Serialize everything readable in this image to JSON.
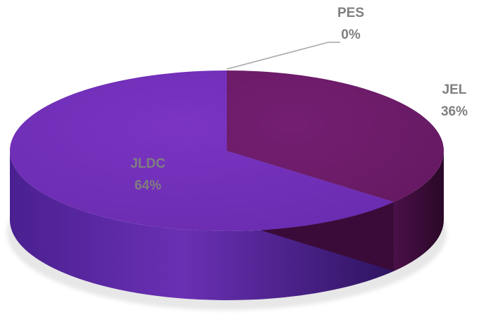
{
  "chart_data": {
    "type": "pie",
    "style": "3d",
    "title": "",
    "slices": [
      {
        "name": "PES",
        "value": 0,
        "label": "0%",
        "color": "#8b4a9a",
        "label_color": "#7f7f7f"
      },
      {
        "name": "JEL",
        "value": 36,
        "label": "36%",
        "color": "#6b1f6a",
        "label_color": "#7f7f7f"
      },
      {
        "name": "JLDC",
        "value": 64,
        "label": "64%",
        "color": "#7030b8",
        "label_color": "#7f7f7f"
      }
    ],
    "legend": "none",
    "data_labels": "category-and-percent"
  }
}
